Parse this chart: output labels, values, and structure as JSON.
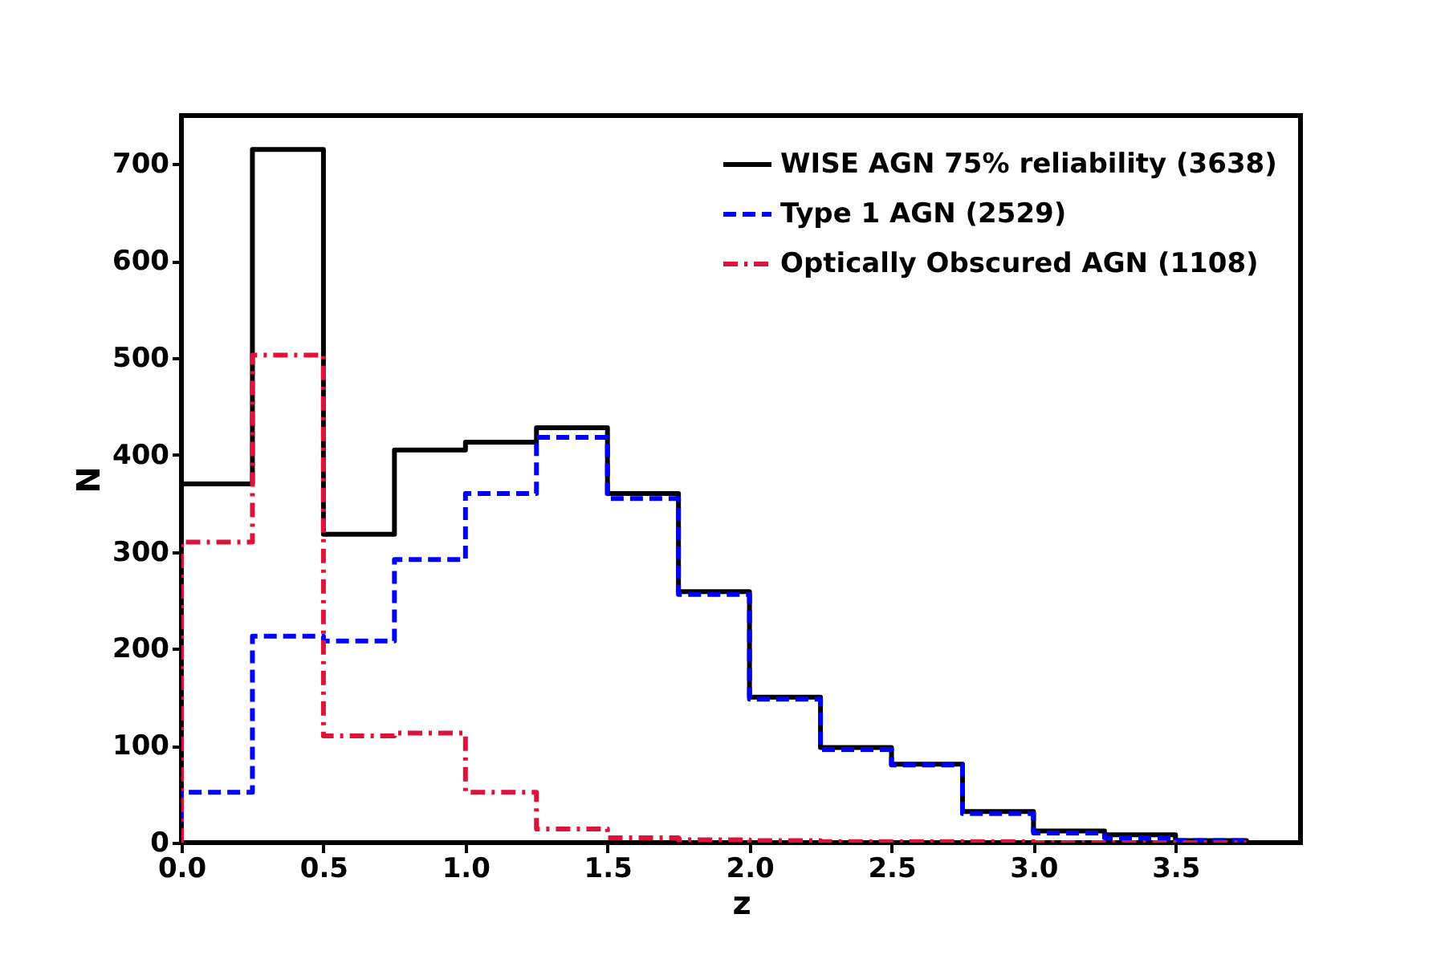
{
  "chart_data": {
    "type": "histogram",
    "xlabel": "z",
    "ylabel": "N",
    "bins": [
      0,
      0.25,
      0.5,
      0.75,
      1.0,
      1.25,
      1.5,
      1.75,
      2.0,
      2.25,
      2.5,
      2.75,
      3.0,
      3.25,
      3.5,
      3.75
    ],
    "series": [
      {
        "name": "WISE AGN 75% reliability (3638)",
        "color": "#000000",
        "line_style": "solid",
        "values": [
          370,
          715,
          318,
          405,
          413,
          428,
          360,
          259,
          150,
          98,
          81,
          32,
          12,
          8,
          2
        ]
      },
      {
        "name": "Type 1 AGN (2529)",
        "color": "#0000ff",
        "line_style": "dashed",
        "values": [
          52,
          213,
          208,
          292,
          360,
          418,
          355,
          256,
          148,
          96,
          80,
          30,
          10,
          5,
          2
        ]
      },
      {
        "name": "Optically Obscured AGN (1108)",
        "color": "#dc143c",
        "line_style": "dashdot",
        "values": [
          310,
          503,
          110,
          113,
          52,
          14,
          5,
          3,
          2,
          1,
          1,
          1,
          0,
          0,
          0
        ]
      }
    ],
    "xlim": [
      0,
      3.94
    ],
    "xticks": [
      {
        "value": 0,
        "label": "0.0"
      },
      0.5,
      {
        "value": 1,
        "label": "1.0"
      },
      1.5,
      {
        "value": 2,
        "label": "2.0"
      },
      2.5,
      {
        "value": 3,
        "label": "3.0"
      },
      3.5
    ],
    "ylim": [
      0,
      750
    ],
    "yticks": [
      0,
      100,
      200,
      300,
      400,
      500,
      600,
      700
    ],
    "grid": false,
    "legend": "top right"
  }
}
